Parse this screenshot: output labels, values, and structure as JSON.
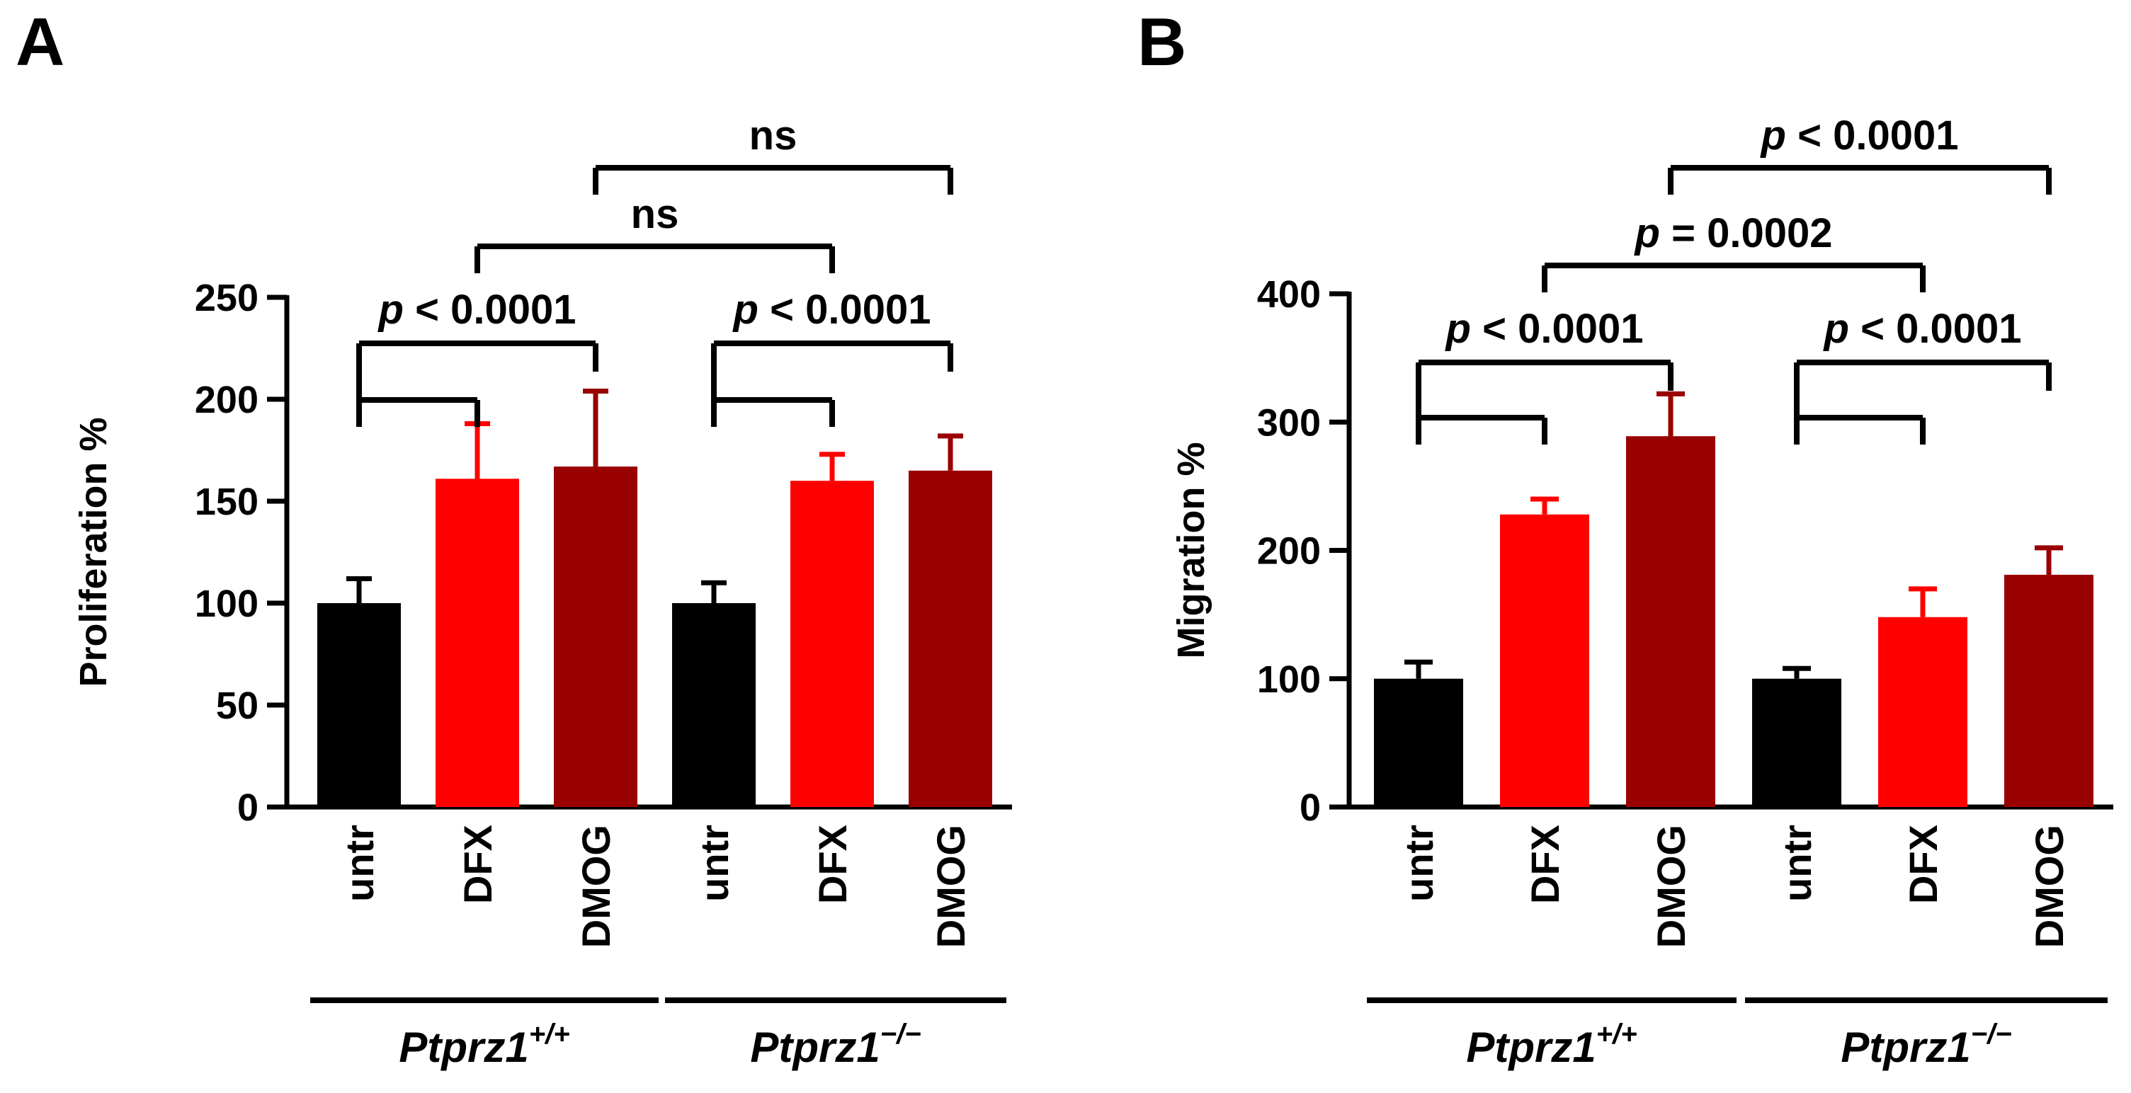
{
  "chart_data": [
    {
      "panel_label": "A",
      "type": "bar",
      "ylabel": "Proliferation %",
      "ylim": [
        0,
        250
      ],
      "yticks": [
        0,
        50,
        100,
        150,
        200,
        250
      ],
      "categories": [
        "untr",
        "DFX",
        "DMOG",
        "untr",
        "DFX",
        "DMOG"
      ],
      "values": [
        100,
        161,
        167,
        100,
        160,
        165
      ],
      "errors": [
        12,
        27,
        37,
        10,
        13,
        17
      ],
      "bar_colors": [
        "#000000",
        "#ff0000",
        "#990000",
        "#000000",
        "#ff0000",
        "#990000"
      ],
      "groups": [
        {
          "gene": "Ptprz1",
          "genotype": "+/+",
          "categories": [
            0,
            1,
            2
          ]
        },
        {
          "gene": "Ptprz1",
          "genotype": "−/−",
          "categories": [
            3,
            4,
            5
          ]
        }
      ],
      "significance": [
        {
          "from": 0,
          "to": [
            1,
            2
          ],
          "prefix": "p",
          "text": " < 0.0001",
          "level": 1
        },
        {
          "from": 3,
          "to": [
            4,
            5
          ],
          "prefix": "p",
          "text": " < 0.0001",
          "level": 1
        },
        {
          "from": 1,
          "to": [
            4
          ],
          "prefix": "",
          "text": "ns",
          "level": 2
        },
        {
          "from": 2,
          "to": [
            5
          ],
          "prefix": "",
          "text": "ns",
          "level": 3
        }
      ]
    },
    {
      "panel_label": "B",
      "type": "bar",
      "ylabel": "Migration %",
      "ylim": [
        0,
        400
      ],
      "yticks": [
        0,
        100,
        200,
        300,
        400
      ],
      "categories": [
        "untr",
        "DFX",
        "DMOG",
        "untr",
        "DFX",
        "DMOG"
      ],
      "values": [
        100,
        228,
        289,
        100,
        148,
        181
      ],
      "errors": [
        13,
        12,
        33,
        8,
        22,
        21
      ],
      "bar_colors": [
        "#000000",
        "#ff0000",
        "#990000",
        "#000000",
        "#ff0000",
        "#990000"
      ],
      "groups": [
        {
          "gene": "Ptprz1",
          "genotype": "+/+",
          "categories": [
            0,
            1,
            2
          ]
        },
        {
          "gene": "Ptprz1",
          "genotype": "−/−",
          "categories": [
            3,
            4,
            5
          ]
        }
      ],
      "significance": [
        {
          "from": 0,
          "to": [
            1,
            2
          ],
          "prefix": "p",
          "text": " < 0.0001",
          "level": 1
        },
        {
          "from": 3,
          "to": [
            4,
            5
          ],
          "prefix": "p",
          "text": " < 0.0001",
          "level": 1
        },
        {
          "from": 1,
          "to": [
            4
          ],
          "prefix": "p",
          "text": " = 0.0002",
          "level": 2
        },
        {
          "from": 2,
          "to": [
            5
          ],
          "prefix": "p",
          "text": " < 0.0001",
          "level": 3
        }
      ]
    }
  ]
}
